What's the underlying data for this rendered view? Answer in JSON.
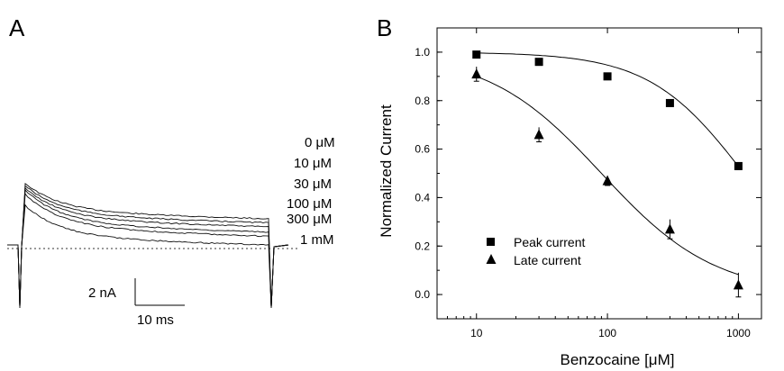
{
  "panel_a": {
    "letter": "A",
    "concentrations": [
      "0 μM",
      "10 μM",
      "30 μM",
      "100 μM",
      "300 μM",
      "1 mM"
    ],
    "scale_bar": {
      "current": "2 nA",
      "time": "10 ms"
    }
  },
  "panel_b": {
    "letter": "B"
  },
  "chart_data": [
    {
      "type": "line",
      "panel": "A",
      "description_of_traces": "Late sodium current traces in the presence of increasing benzocaine; steady-state level decreasing with concentration",
      "series": [
        {
          "name": "0 μM",
          "peak": 4.3,
          "end": 2.2
        },
        {
          "name": "10 μM",
          "peak": 4.1,
          "end": 1.9
        },
        {
          "name": "30 μM",
          "peak": 3.9,
          "end": 1.6
        },
        {
          "name": "100 μM",
          "peak": 3.7,
          "end": 1.2
        },
        {
          "name": "300 μM",
          "peak": 3.4,
          "end": 0.9
        },
        {
          "name": "1 mM",
          "peak": 2.6,
          "end": 0.25
        }
      ],
      "scale_bar": {
        "current_nA": 2,
        "time_ms": 10
      },
      "baseline": "dotted zero-current line"
    },
    {
      "type": "scatter",
      "panel": "B",
      "xlabel": "Benzocaine [μM]",
      "ylabel": "Normalized Current",
      "xscale": "log",
      "xlim": [
        5,
        1500
      ],
      "ylim": [
        -0.1,
        1.1
      ],
      "xticks": [
        10,
        100,
        1000
      ],
      "yticks": [
        0.0,
        0.2,
        0.4,
        0.6,
        0.8,
        1.0
      ],
      "xtick_labels": [
        "10",
        "100",
        "1000"
      ],
      "ytick_labels": [
        "0.0",
        "0.2",
        "0.4",
        "0.6",
        "0.8",
        "1.0"
      ],
      "legend_position": "lower-left",
      "series": [
        {
          "name": "Peak current",
          "marker": "square",
          "x": [
            10,
            30,
            100,
            300,
            1000
          ],
          "y": [
            0.99,
            0.96,
            0.9,
            0.79,
            0.53
          ],
          "err": [
            0.01,
            0.01,
            0.01,
            0.01,
            0.015
          ],
          "fit": {
            "ic50": 1100,
            "hill": 1.2
          }
        },
        {
          "name": "Late current",
          "marker": "triangle",
          "x": [
            10,
            30,
            100,
            300,
            1000
          ],
          "y": [
            0.91,
            0.66,
            0.47,
            0.27,
            0.04
          ],
          "err": [
            0.03,
            0.03,
            0.02,
            0.04,
            0.05
          ],
          "fit": {
            "ic50": 90,
            "hill": 1.0
          }
        }
      ]
    }
  ]
}
